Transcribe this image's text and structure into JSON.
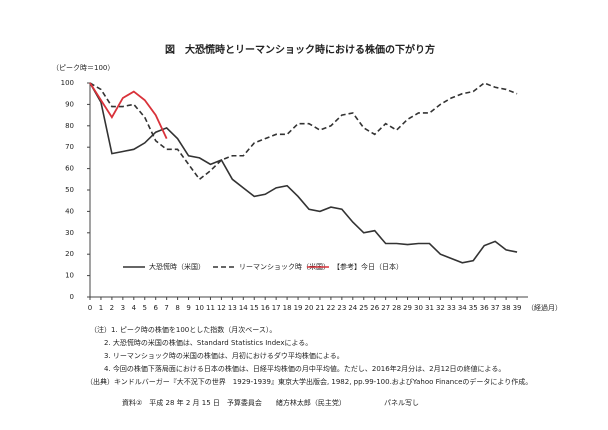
{
  "chart_data": {
    "type": "line",
    "title": "図　大恐慌時とリーマンショック時における株価の下がり方",
    "y_label": "（ピーク時＝100）",
    "x_label": "（経過月）",
    "xlim": [
      0,
      40
    ],
    "xticks": [
      0,
      1,
      2,
      3,
      4,
      5,
      6,
      7,
      8,
      9,
      10,
      11,
      12,
      13,
      14,
      15,
      16,
      17,
      18,
      19,
      20,
      21,
      22,
      23,
      24,
      25,
      26,
      27,
      28,
      29,
      30,
      31,
      32,
      33,
      34,
      35,
      36,
      37,
      38,
      39
    ],
    "ylim": [
      0,
      100
    ],
    "yticks": [
      0,
      10,
      20,
      30,
      40,
      50,
      60,
      70,
      80,
      90,
      100
    ],
    "x": [
      0,
      1,
      2,
      3,
      4,
      5,
      6,
      7,
      8,
      9,
      10,
      11,
      12,
      13,
      14,
      15,
      16,
      17,
      18,
      19,
      20,
      21,
      22,
      23,
      24,
      25,
      26,
      27,
      28,
      29,
      30,
      31,
      32,
      33,
      34,
      35,
      36,
      37,
      38,
      39
    ],
    "series": [
      {
        "name": "大恐慌時（米国）",
        "color": "#333333",
        "style": "solid",
        "values": [
          100,
          91,
          67,
          68,
          69,
          72,
          77,
          79,
          74,
          66,
          65,
          62,
          64,
          55,
          51,
          47,
          48,
          51,
          52,
          47,
          41,
          40,
          42,
          41,
          35,
          30,
          31,
          25,
          25,
          24.5,
          25,
          25,
          20,
          18,
          16,
          17,
          24,
          26,
          22,
          21
        ]
      },
      {
        "name": "リーマンショック時（米国）",
        "color": "#333333",
        "style": "dashed",
        "values": [
          100,
          97,
          89,
          89,
          90,
          84,
          73,
          69,
          69,
          62,
          55,
          59,
          64,
          66,
          66,
          72,
          74,
          76,
          76,
          81,
          81,
          78,
          80,
          85,
          86,
          79,
          76,
          81,
          78,
          83,
          86,
          86,
          90,
          93,
          95,
          96,
          100,
          98,
          97,
          95
        ]
      },
      {
        "name": "【参考】今日（日本）",
        "color": "#d9323a",
        "style": "solid",
        "values": [
          100,
          92,
          84,
          93,
          96,
          92,
          85,
          74,
          null,
          null,
          null,
          null,
          null,
          null,
          null,
          null,
          null,
          null,
          null,
          null,
          null,
          null,
          null,
          null,
          null,
          null,
          null,
          null,
          null,
          null,
          null,
          null,
          null,
          null,
          null,
          null,
          null,
          null,
          null,
          null
        ]
      }
    ],
    "notes": [
      "（注）1. ピーク時の株価を100とした指数（月次ベース）。",
      "2. 大恐慌時の米国の株価は、Standard Statistics Indexによる。",
      "3. リーマンショック時の米国の株価は、月初におけるダウ平均株価による。",
      "4. 今回の株価下落局面における日本の株価は、日経平均株価の月中平均値。ただし、2016年2月分は、2月12日の終値による。",
      "（出典）キンドルバーガー『大不況下の世界　1929-1939』東京大学出版会, 1982, pp.99-100.およびYahoo Financeのデータにより作成。"
    ],
    "footer": "資料②　平成 28 年 2 月 15 日　予算委員会　　緒方林太郎（民主党）",
    "footer_right": "パネル写し"
  }
}
